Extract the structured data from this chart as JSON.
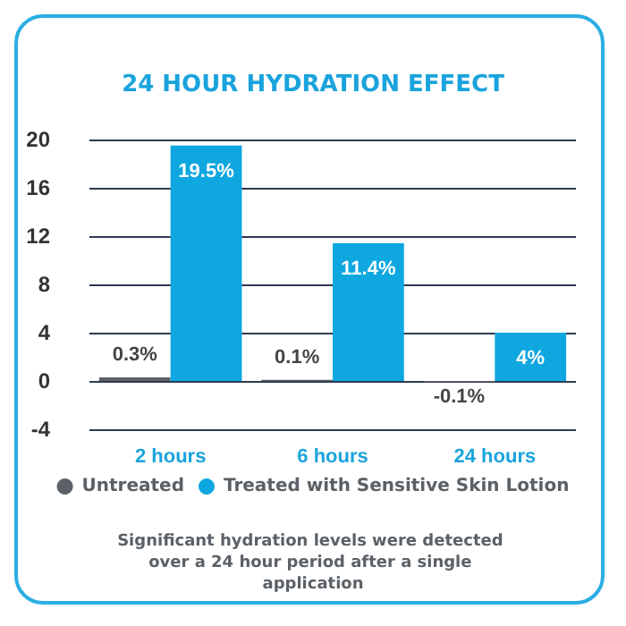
{
  "chart_data": {
    "type": "bar",
    "title": "24 HOUR HYDRATION EFFECT",
    "categories": [
      "2 hours",
      "6 hours",
      "24 hours"
    ],
    "series": [
      {
        "name": "Untreated",
        "color": "#5b6166",
        "values": [
          0.3,
          0.1,
          -0.1
        ],
        "value_labels": [
          "0.3%",
          "0.1%",
          "-0.1%"
        ]
      },
      {
        "name": "Treated with Sensitive Skin Lotion",
        "color": "#0fa7e0",
        "values": [
          19.5,
          11.4,
          4
        ],
        "value_labels": [
          "19.5%",
          "11.4%",
          "4%"
        ]
      }
    ],
    "ylim": [
      -4,
      20
    ],
    "yticks": [
      -4,
      0,
      4,
      8,
      12,
      16,
      20
    ],
    "grid": "y",
    "legend": "bottom",
    "annotations": [
      "Significant hydration levels were detected over a 24 hour period after a single application"
    ]
  }
}
